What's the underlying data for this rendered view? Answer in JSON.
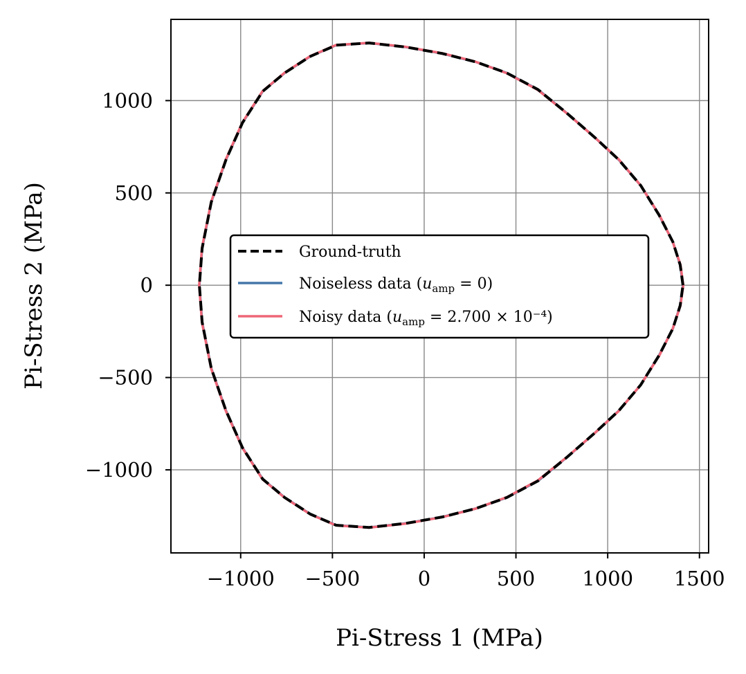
{
  "chart_data": {
    "type": "line",
    "title": "",
    "xlabel": "Pi-Stress 1 (MPa)",
    "ylabel": "Pi-Stress 2 (MPa)",
    "xlim": [
      -1380,
      1550
    ],
    "ylim": [
      -1450,
      1440
    ],
    "xticks": [
      -1000,
      -500,
      0,
      500,
      1000,
      1500
    ],
    "yticks": [
      -1000,
      -500,
      0,
      500,
      1000
    ],
    "xtick_labels": [
      "−1000",
      "−500",
      "0",
      "500",
      "1000",
      "1500"
    ],
    "ytick_labels": [
      "−1000",
      "−500",
      "0",
      "500",
      "1000"
    ],
    "grid": true,
    "legend_position": "center",
    "series": [
      {
        "name": "Ground-truth",
        "style": "dashed",
        "color": "#000000",
        "points": [
          [
            1410,
            0
          ],
          [
            1395,
            110
          ],
          [
            1355,
            235
          ],
          [
            1280,
            380
          ],
          [
            1180,
            540
          ],
          [
            1060,
            680
          ],
          [
            930,
            800
          ],
          [
            780,
            930
          ],
          [
            620,
            1060
          ],
          [
            450,
            1150
          ],
          [
            280,
            1210
          ],
          [
            100,
            1255
          ],
          [
            -100,
            1290
          ],
          [
            -300,
            1312
          ],
          [
            -480,
            1300
          ],
          [
            -620,
            1240
          ],
          [
            -760,
            1150
          ],
          [
            -880,
            1050
          ],
          [
            -990,
            880
          ],
          [
            -1080,
            680
          ],
          [
            -1160,
            450
          ],
          [
            -1210,
            200
          ],
          [
            -1225,
            0
          ],
          [
            -1210,
            -200
          ],
          [
            -1160,
            -450
          ],
          [
            -1080,
            -680
          ],
          [
            -990,
            -880
          ],
          [
            -880,
            -1050
          ],
          [
            -760,
            -1150
          ],
          [
            -620,
            -1240
          ],
          [
            -480,
            -1300
          ],
          [
            -300,
            -1312
          ],
          [
            -100,
            -1290
          ],
          [
            100,
            -1255
          ],
          [
            280,
            -1210
          ],
          [
            450,
            -1150
          ],
          [
            620,
            -1060
          ],
          [
            780,
            -930
          ],
          [
            930,
            -800
          ],
          [
            1060,
            -680
          ],
          [
            1180,
            -540
          ],
          [
            1280,
            -380
          ],
          [
            1355,
            -235
          ],
          [
            1395,
            -110
          ],
          [
            1410,
            0
          ]
        ]
      },
      {
        "name": "Noiseless data",
        "style": "solid",
        "color": "#4477aa",
        "points": [
          [
            1410,
            0
          ],
          [
            1395,
            110
          ],
          [
            1355,
            235
          ],
          [
            1280,
            380
          ],
          [
            1180,
            540
          ],
          [
            1060,
            680
          ],
          [
            930,
            800
          ],
          [
            780,
            930
          ],
          [
            620,
            1060
          ],
          [
            450,
            1150
          ],
          [
            280,
            1210
          ],
          [
            100,
            1255
          ],
          [
            -100,
            1290
          ],
          [
            -300,
            1312
          ],
          [
            -480,
            1300
          ],
          [
            -620,
            1240
          ],
          [
            -760,
            1150
          ],
          [
            -880,
            1050
          ],
          [
            -990,
            880
          ],
          [
            -1080,
            680
          ],
          [
            -1160,
            450
          ],
          [
            -1210,
            200
          ],
          [
            -1225,
            0
          ],
          [
            -1210,
            -200
          ],
          [
            -1160,
            -450
          ],
          [
            -1080,
            -680
          ],
          [
            -990,
            -880
          ],
          [
            -880,
            -1050
          ],
          [
            -760,
            -1150
          ],
          [
            -620,
            -1240
          ],
          [
            -480,
            -1300
          ],
          [
            -300,
            -1312
          ],
          [
            -100,
            -1290
          ],
          [
            100,
            -1255
          ],
          [
            280,
            -1210
          ],
          [
            450,
            -1150
          ],
          [
            620,
            -1060
          ],
          [
            780,
            -930
          ],
          [
            930,
            -800
          ],
          [
            1060,
            -680
          ],
          [
            1180,
            -540
          ],
          [
            1280,
            -380
          ],
          [
            1355,
            -235
          ],
          [
            1395,
            -110
          ],
          [
            1410,
            0
          ]
        ]
      },
      {
        "name": "Noisy data",
        "style": "solid",
        "color": "#ee6677",
        "points": [
          [
            1412,
            0
          ],
          [
            1396,
            112
          ],
          [
            1354,
            236
          ],
          [
            1281,
            381
          ],
          [
            1179,
            541
          ],
          [
            1061,
            681
          ],
          [
            929,
            801
          ],
          [
            781,
            928
          ],
          [
            619,
            1058
          ],
          [
            451,
            1148
          ],
          [
            279,
            1211
          ],
          [
            101,
            1256
          ],
          [
            -99,
            1291
          ],
          [
            -301,
            1313
          ],
          [
            -481,
            1301
          ],
          [
            -621,
            1241
          ],
          [
            -761,
            1151
          ],
          [
            -881,
            1051
          ],
          [
            -991,
            881
          ],
          [
            -1081,
            681
          ],
          [
            -1161,
            451
          ],
          [
            -1211,
            201
          ],
          [
            -1226,
            0
          ],
          [
            -1211,
            -201
          ],
          [
            -1161,
            -451
          ],
          [
            -1081,
            -681
          ],
          [
            -991,
            -881
          ],
          [
            -881,
            -1051
          ],
          [
            -761,
            -1151
          ],
          [
            -621,
            -1241
          ],
          [
            -481,
            -1301
          ],
          [
            -301,
            -1313
          ],
          [
            -99,
            -1291
          ],
          [
            101,
            -1256
          ],
          [
            279,
            -1211
          ],
          [
            451,
            -1148
          ],
          [
            619,
            -1058
          ],
          [
            781,
            -928
          ],
          [
            929,
            -801
          ],
          [
            1061,
            -681
          ],
          [
            1179,
            -541
          ],
          [
            1281,
            -381
          ],
          [
            1354,
            -236
          ],
          [
            1396,
            -112
          ],
          [
            1412,
            0
          ]
        ]
      }
    ]
  },
  "legend": {
    "items": [
      {
        "prefix": "Ground-truth",
        "var": "",
        "sub": "",
        "suffix": ""
      },
      {
        "prefix": "Noiseless data (",
        "var": "u",
        "sub": "amp",
        "suffix": " = 0)"
      },
      {
        "prefix": "Noisy data (",
        "var": "u",
        "sub": "amp",
        "suffix": " = 2.700 × 10⁻⁴)"
      }
    ]
  }
}
